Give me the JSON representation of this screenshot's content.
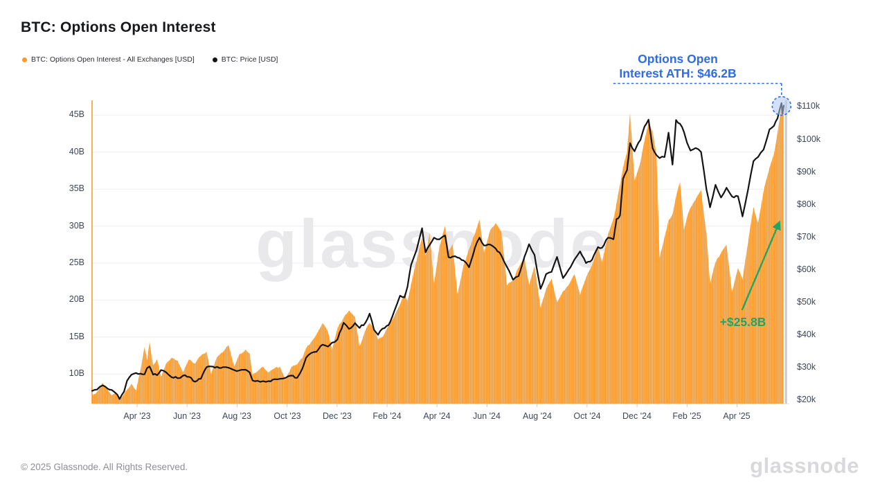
{
  "page": {
    "title": "BTC: Options Open Interest"
  },
  "legend": [
    {
      "label": "BTC: Options Open Interest - All Exchanges [USD]",
      "color": "#F79B2E"
    },
    {
      "label": "BTC: Price [USD]",
      "color": "#141414"
    }
  ],
  "annotations": {
    "ath": {
      "line1": "Options Open",
      "line2": "Interest ATH: $46.2B",
      "color": "#2E6BE6",
      "circle_fill": "#AEC8F2"
    },
    "delta": {
      "label": "+$25.8B",
      "color": "#21A464"
    }
  },
  "watermark": "glassnode",
  "footer": {
    "copyright": "© 2025 Glassnode. All Rights Reserved.",
    "brand": "glassnode"
  },
  "chart_data": {
    "type": "combo",
    "title": "BTC: Options Open Interest",
    "x_unit": "months since Apr 2023",
    "x_domain": [
      -1.8,
      25.87
    ],
    "x_ticks": [
      {
        "m": 0,
        "label": "Apr '23"
      },
      {
        "m": 2,
        "label": "Jun '23"
      },
      {
        "m": 4,
        "label": "Aug '23"
      },
      {
        "m": 6,
        "label": "Oct '23"
      },
      {
        "m": 8,
        "label": "Dec '23"
      },
      {
        "m": 10,
        "label": "Feb '24"
      },
      {
        "m": 12,
        "label": "Apr '24"
      },
      {
        "m": 14,
        "label": "Jun '24"
      },
      {
        "m": 16,
        "label": "Aug '24"
      },
      {
        "m": 18,
        "label": "Oct '24"
      },
      {
        "m": 20,
        "label": "Dec '24"
      },
      {
        "m": 22,
        "label": "Feb '25"
      },
      {
        "m": 24,
        "label": "Apr '25"
      }
    ],
    "left_axis": {
      "range": [
        6,
        47
      ],
      "grid": true,
      "ticks": [
        {
          "v": 10,
          "label": "10B"
        },
        {
          "v": 15,
          "label": "15B"
        },
        {
          "v": 20,
          "label": "20B"
        },
        {
          "v": 25,
          "label": "25B"
        },
        {
          "v": 30,
          "label": "30B"
        },
        {
          "v": 35,
          "label": "35B"
        },
        {
          "v": 40,
          "label": "40B"
        },
        {
          "v": 45,
          "label": "45B"
        }
      ]
    },
    "right_axis": {
      "range": [
        19,
        112
      ],
      "grid": false,
      "ticks": [
        {
          "v": 20,
          "label": "$20k"
        },
        {
          "v": 30,
          "label": "$30k"
        },
        {
          "v": 40,
          "label": "$40k"
        },
        {
          "v": 50,
          "label": "$50k"
        },
        {
          "v": 60,
          "label": "$60k"
        },
        {
          "v": 70,
          "label": "$70k"
        },
        {
          "v": 80,
          "label": "$80k"
        },
        {
          "v": 90,
          "label": "$90k"
        },
        {
          "v": 100,
          "label": "$100k"
        },
        {
          "v": 110,
          "label": "$110k"
        }
      ]
    },
    "series": [
      {
        "name": "BTC: Options Open Interest - All Exchanges [USD]",
        "type": "bars-area",
        "axis": "left",
        "unit": "USD billions",
        "color": "#F79B2E"
      },
      {
        "name": "BTC: Price [USD]",
        "type": "line",
        "axis": "right",
        "unit": "USD thousands",
        "color": "#141414"
      }
    ],
    "ath_point": {
      "m": 25.78,
      "open_interest_b": 46.2,
      "price_k": 111.2
    },
    "points": [
      [
        -1.8,
        7.1,
        22.9
      ],
      [
        -1.6,
        7.6,
        23.3
      ],
      [
        -1.38,
        8.8,
        24.6
      ],
      [
        -1.18,
        7.9,
        23.6
      ],
      [
        -1.02,
        7.1,
        23.2
      ],
      [
        -0.88,
        7.4,
        22.4
      ],
      [
        -0.7,
        6.6,
        20.4
      ],
      [
        -0.52,
        7.3,
        22.7
      ],
      [
        -0.4,
        7.9,
        26.0
      ],
      [
        -0.22,
        8.7,
        27.9
      ],
      [
        -0.04,
        7.8,
        28.4
      ],
      [
        0.14,
        10.6,
        28.2
      ],
      [
        0.3,
        13.7,
        28.0
      ],
      [
        0.4,
        11.9,
        29.9
      ],
      [
        0.5,
        14.4,
        30.4
      ],
      [
        0.64,
        11.2,
        27.9
      ],
      [
        0.8,
        12.0,
        27.7
      ],
      [
        0.96,
        9.6,
        29.3
      ],
      [
        1.16,
        11.4,
        28.6
      ],
      [
        1.38,
        12.2,
        27.1
      ],
      [
        1.62,
        11.8,
        26.8
      ],
      [
        1.84,
        10.2,
        27.6
      ],
      [
        2.08,
        12.0,
        27.2
      ],
      [
        2.32,
        11.4,
        25.7
      ],
      [
        2.55,
        12.5,
        26.6
      ],
      [
        2.78,
        13.0,
        30.2
      ],
      [
        2.96,
        10.0,
        30.4
      ],
      [
        3.2,
        12.3,
        30.3
      ],
      [
        3.44,
        13.0,
        30.2
      ],
      [
        3.66,
        13.9,
        30.0
      ],
      [
        3.88,
        11.0,
        29.3
      ],
      [
        4.1,
        12.7,
        29.2
      ],
      [
        4.34,
        13.3,
        29.4
      ],
      [
        4.5,
        12.8,
        28.6
      ],
      [
        4.62,
        9.9,
        26.1
      ],
      [
        4.82,
        10.4,
        26.0
      ],
      [
        5.04,
        11.0,
        25.9
      ],
      [
        5.26,
        10.2,
        25.9
      ],
      [
        5.5,
        10.8,
        26.5
      ],
      [
        5.72,
        11.0,
        26.6
      ],
      [
        5.94,
        9.3,
        26.9
      ],
      [
        6.16,
        10.9,
        27.6
      ],
      [
        6.4,
        11.3,
        26.9
      ],
      [
        6.62,
        12.2,
        29.9
      ],
      [
        6.76,
        13.5,
        33.1
      ],
      [
        6.96,
        14.3,
        34.5
      ],
      [
        7.18,
        15.4,
        34.9
      ],
      [
        7.42,
        16.9,
        37.1
      ],
      [
        7.64,
        15.7,
        36.5
      ],
      [
        7.8,
        13.3,
        37.7
      ],
      [
        8.02,
        16.2,
        38.7
      ],
      [
        8.26,
        17.6,
        43.8
      ],
      [
        8.48,
        18.6,
        41.9
      ],
      [
        8.72,
        17.7,
        43.7
      ],
      [
        8.9,
        13.7,
        42.2
      ],
      [
        9.14,
        16.0,
        43.9
      ],
      [
        9.3,
        16.9,
        46.6
      ],
      [
        9.48,
        16.1,
        41.6
      ],
      [
        9.64,
        14.7,
        40.1
      ],
      [
        9.82,
        15.0,
        42.0
      ],
      [
        10.06,
        16.5,
        43.1
      ],
      [
        10.3,
        17.9,
        47.6
      ],
      [
        10.52,
        19.4,
        52.1
      ],
      [
        10.7,
        20.9,
        51.6
      ],
      [
        10.82,
        19.9,
        54.9
      ],
      [
        10.96,
        22.1,
        61.5
      ],
      [
        11.18,
        25.3,
        66.1
      ],
      [
        11.4,
        28.5,
        72.8
      ],
      [
        11.54,
        26.0,
        65.4
      ],
      [
        11.7,
        29.1,
        67.6
      ],
      [
        11.88,
        22.3,
        69.9
      ],
      [
        12.1,
        27.3,
        69.4
      ],
      [
        12.32,
        30.0,
        70.6
      ],
      [
        12.46,
        26.6,
        63.9
      ],
      [
        12.62,
        27.6,
        64.1
      ],
      [
        12.82,
        20.8,
        63.8
      ],
      [
        13.06,
        24.7,
        62.9
      ],
      [
        13.28,
        26.9,
        60.8
      ],
      [
        13.52,
        29.0,
        66.9
      ],
      [
        13.7,
        30.9,
        69.9
      ],
      [
        13.88,
        26.4,
        67.5
      ],
      [
        14.12,
        29.4,
        67.8
      ],
      [
        14.34,
        30.4,
        66.6
      ],
      [
        14.58,
        29.2,
        64.3
      ],
      [
        14.8,
        22.0,
        60.9
      ],
      [
        15.04,
        22.7,
        57.0
      ],
      [
        15.26,
        24.4,
        58.1
      ],
      [
        15.5,
        25.7,
        64.1
      ],
      [
        15.68,
        22.1,
        67.9
      ],
      [
        15.9,
        24.6,
        64.6
      ],
      [
        16.14,
        19.0,
        54.2
      ],
      [
        16.36,
        21.5,
        58.7
      ],
      [
        16.58,
        22.9,
        59.4
      ],
      [
        16.8,
        19.7,
        64.0
      ],
      [
        17.04,
        21.2,
        57.5
      ],
      [
        17.26,
        22.0,
        60.0
      ],
      [
        17.5,
        23.5,
        63.2
      ],
      [
        17.72,
        20.7,
        65.7
      ],
      [
        17.96,
        23.0,
        62.1
      ],
      [
        18.2,
        24.7,
        63.1
      ],
      [
        18.44,
        27.3,
        67.0
      ],
      [
        18.6,
        25.0,
        66.8
      ],
      [
        18.84,
        28.9,
        69.9
      ],
      [
        19.06,
        31.0,
        69.4
      ],
      [
        19.18,
        33.1,
        75.6
      ],
      [
        19.32,
        35.6,
        76.7
      ],
      [
        19.44,
        37.9,
        88.0
      ],
      [
        19.6,
        40.0,
        90.6
      ],
      [
        19.72,
        45.3,
        98.9
      ],
      [
        19.9,
        36.2,
        96.4
      ],
      [
        20.14,
        38.7,
        99.9
      ],
      [
        20.3,
        41.6,
        104.0
      ],
      [
        20.46,
        44.0,
        106.1
      ],
      [
        20.62,
        42.8,
        97.4
      ],
      [
        20.78,
        39.6,
        95.2
      ],
      [
        20.9,
        25.7,
        94.3
      ],
      [
        21.1,
        28.5,
        94.6
      ],
      [
        21.26,
        30.8,
        102.1
      ],
      [
        21.42,
        31.6,
        92.3
      ],
      [
        21.56,
        34.0,
        106.0
      ],
      [
        21.72,
        36.0,
        104.8
      ],
      [
        21.88,
        29.5,
        102.3
      ],
      [
        22.0,
        31.2,
        99.0
      ],
      [
        22.14,
        32.5,
        96.6
      ],
      [
        22.34,
        33.6,
        97.4
      ],
      [
        22.56,
        34.9,
        96.2
      ],
      [
        22.78,
        29.0,
        84.6
      ],
      [
        22.92,
        22.2,
        79.2
      ],
      [
        23.14,
        25.1,
        86.1
      ],
      [
        23.36,
        26.4,
        82.2
      ],
      [
        23.58,
        27.5,
        85.2
      ],
      [
        23.8,
        21.0,
        82.5
      ],
      [
        24.04,
        24.3,
        82.6
      ],
      [
        24.22,
        22.8,
        76.4
      ],
      [
        24.44,
        27.8,
        84.6
      ],
      [
        24.66,
        32.6,
        93.4
      ],
      [
        24.84,
        30.4,
        94.6
      ],
      [
        25.06,
        34.7,
        96.9
      ],
      [
        25.3,
        37.9,
        103.1
      ],
      [
        25.48,
        39.8,
        104.2
      ],
      [
        25.62,
        42.6,
        106.5
      ],
      [
        25.72,
        44.9,
        109.6
      ],
      [
        25.78,
        46.2,
        111.2
      ],
      [
        25.82,
        45.7,
        107.9
      ],
      [
        25.87,
        45.2,
        110.4
      ]
    ]
  }
}
